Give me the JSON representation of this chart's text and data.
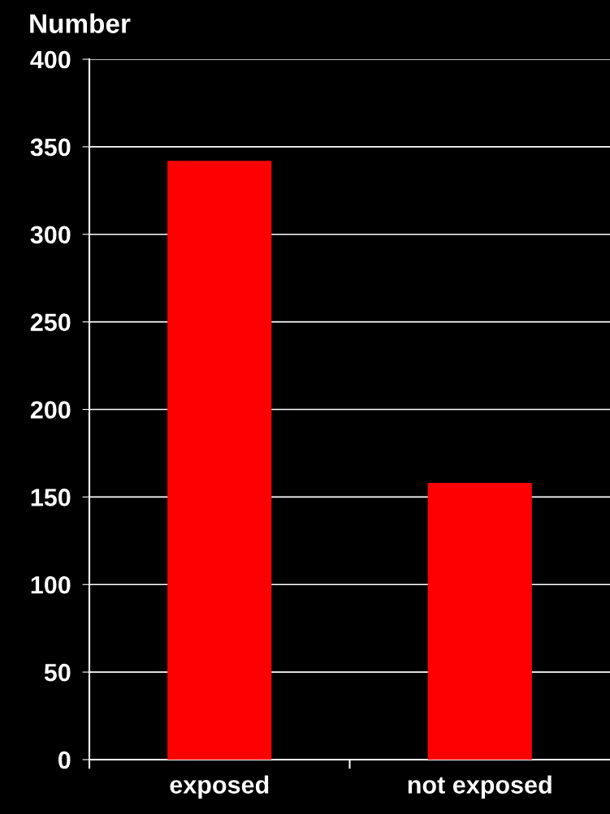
{
  "chart_data": {
    "type": "bar",
    "ylabel": "Number",
    "categories": [
      "exposed",
      "not exposed"
    ],
    "values": [
      342,
      158
    ],
    "color": "#ff0000",
    "ylim": [
      0,
      400
    ],
    "yticks": [
      0,
      50,
      100,
      150,
      200,
      250,
      300,
      350,
      400
    ],
    "grid": "y"
  }
}
